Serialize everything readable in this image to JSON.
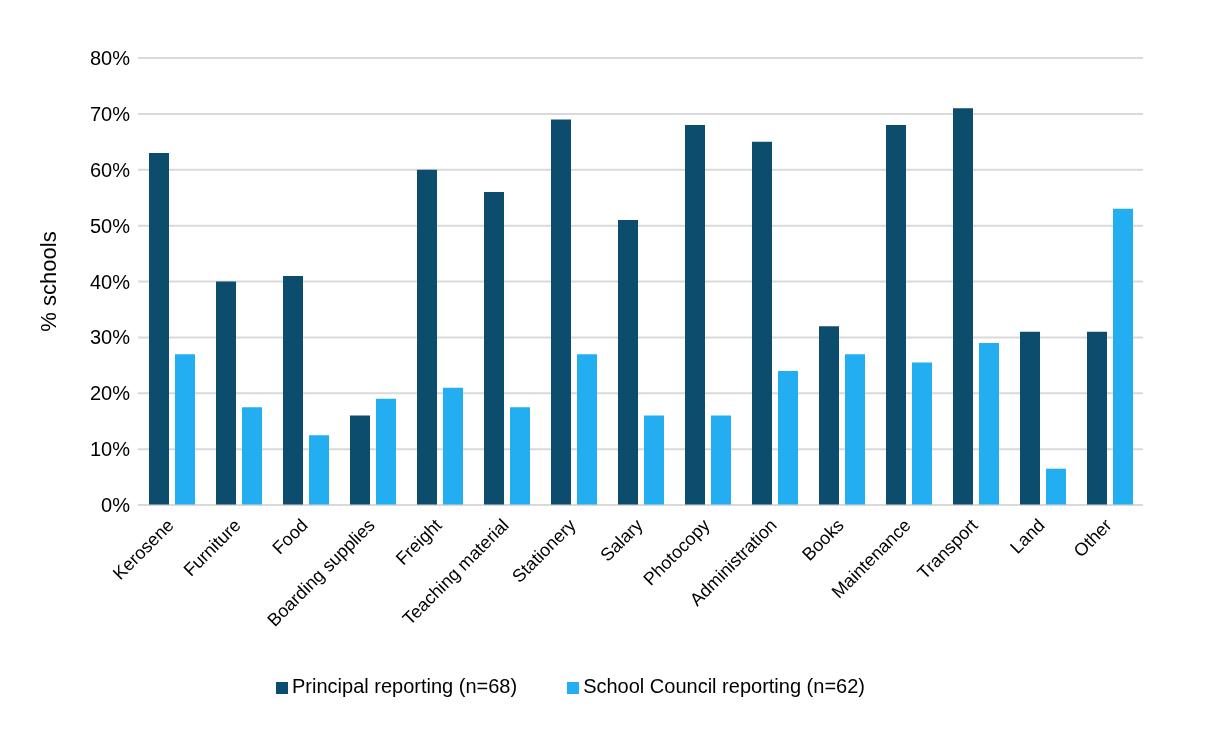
{
  "chart_data": {
    "type": "bar",
    "ylabel": "% schools",
    "categories": [
      "Kerosene",
      "Furniture",
      "Food",
      "Boarding supplies",
      "Freight",
      "Teaching material",
      "Stationery",
      "Salary",
      "Photocopy",
      "Administration",
      "Books",
      "Maintenance",
      "Transport",
      "Land",
      "Other"
    ],
    "series": [
      {
        "name": "Principal reporting (n=68)",
        "color": "#0c4c6c",
        "values": [
          63,
          40,
          41,
          16,
          60,
          56,
          69,
          51,
          68,
          65,
          32,
          68,
          71,
          31,
          31
        ]
      },
      {
        "name": "School Council reporting (n=62)",
        "color": "#22aef0",
        "values": [
          27,
          17.5,
          12.5,
          19,
          21,
          17.5,
          27,
          16,
          16,
          24,
          27,
          25.5,
          29,
          6.5,
          53
        ]
      }
    ],
    "ylim": [
      0,
      80
    ],
    "yticks": [
      {
        "value": 0,
        "label": "0%"
      },
      {
        "value": 10,
        "label": "10%"
      },
      {
        "value": 20,
        "label": "20%"
      },
      {
        "value": 30,
        "label": "30%"
      },
      {
        "value": 40,
        "label": "40%"
      },
      {
        "value": 50,
        "label": "50%"
      },
      {
        "value": 60,
        "label": "60%"
      },
      {
        "value": 70,
        "label": "70%"
      },
      {
        "value": 80,
        "label": "80%"
      }
    ],
    "grid": "y",
    "legend": "bottom"
  }
}
